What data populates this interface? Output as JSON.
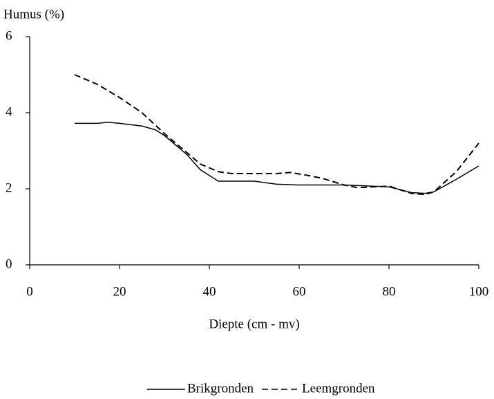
{
  "chart_data": {
    "type": "line",
    "y_label": "Humus (%)",
    "x_label": "Diepte (cm - mv)",
    "xlim": [
      0,
      100
    ],
    "xticks": [
      0,
      20,
      40,
      60,
      80,
      100
    ],
    "ylim": [
      0,
      6
    ],
    "yticks": [
      0,
      2,
      4,
      6
    ],
    "series": [
      {
        "name": "Brikgronden",
        "color": "#000000",
        "dash": "solid",
        "x": [
          10,
          15,
          17.5,
          20,
          25,
          28,
          30,
          35,
          38,
          42,
          45,
          50,
          55,
          60,
          70,
          80,
          85,
          88,
          90,
          95,
          100
        ],
        "values": [
          3.72,
          3.72,
          3.75,
          3.72,
          3.65,
          3.55,
          3.4,
          2.9,
          2.5,
          2.2,
          2.2,
          2.2,
          2.12,
          2.1,
          2.1,
          2.05,
          1.9,
          1.88,
          1.92,
          2.25,
          2.6
        ]
      },
      {
        "name": "Leemgronden",
        "color": "#000000",
        "dash": "dashed",
        "x": [
          10,
          15,
          20,
          25,
          30,
          35,
          38,
          42,
          45,
          50,
          55,
          58,
          62,
          65,
          70,
          73,
          80,
          85,
          88,
          90,
          95,
          100
        ],
        "values": [
          5.0,
          4.75,
          4.4,
          4.0,
          3.45,
          2.95,
          2.65,
          2.45,
          2.4,
          2.4,
          2.4,
          2.43,
          2.35,
          2.28,
          2.1,
          2.03,
          2.07,
          1.88,
          1.85,
          1.92,
          2.45,
          3.2
        ]
      }
    ]
  }
}
